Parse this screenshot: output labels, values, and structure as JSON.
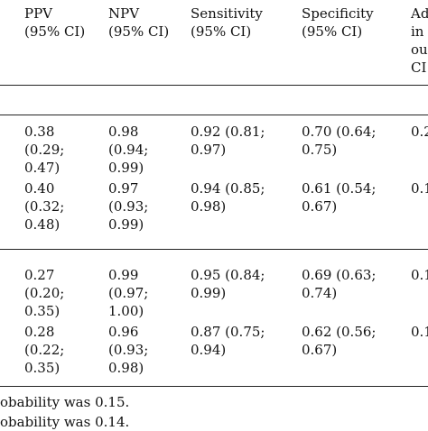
{
  "table": {
    "headers": [
      "PPV\n(95% CI)",
      "NPV\n(95% CI)",
      "Sensitivity\n(95% CI)",
      "Specificity\n(95% CI)",
      "Ad\nin\nou\nCI"
    ],
    "rows": [
      [
        "0.38\n(0.29;\n0.47)",
        "0.98\n(0.94;\n0.99)",
        "0.92 (0.81;\n0.97)",
        "0.70 (0.64;\n0.75)",
        "0.2"
      ],
      [
        "0.40\n(0.32;\n0.48)",
        "0.97\n(0.93;\n0.99)",
        "0.94 (0.85;\n0.98)",
        "0.61 (0.54;\n0.67)",
        "0.1"
      ],
      [
        "0.27\n(0.20;\n0.35)",
        "0.99\n(0.97;\n1.00)",
        "0.95 (0.84;\n0.99)",
        "0.69 (0.63;\n0.74)",
        "0.1"
      ],
      [
        "0.28\n(0.22;\n0.35)",
        "0.96\n(0.93;\n0.98)",
        "0.87 (0.75;\n0.94)",
        "0.62 (0.56;\n0.67)",
        "0.1"
      ]
    ]
  },
  "footnotes": [
    "obability was 0.15.",
    "obability was 0.14."
  ]
}
